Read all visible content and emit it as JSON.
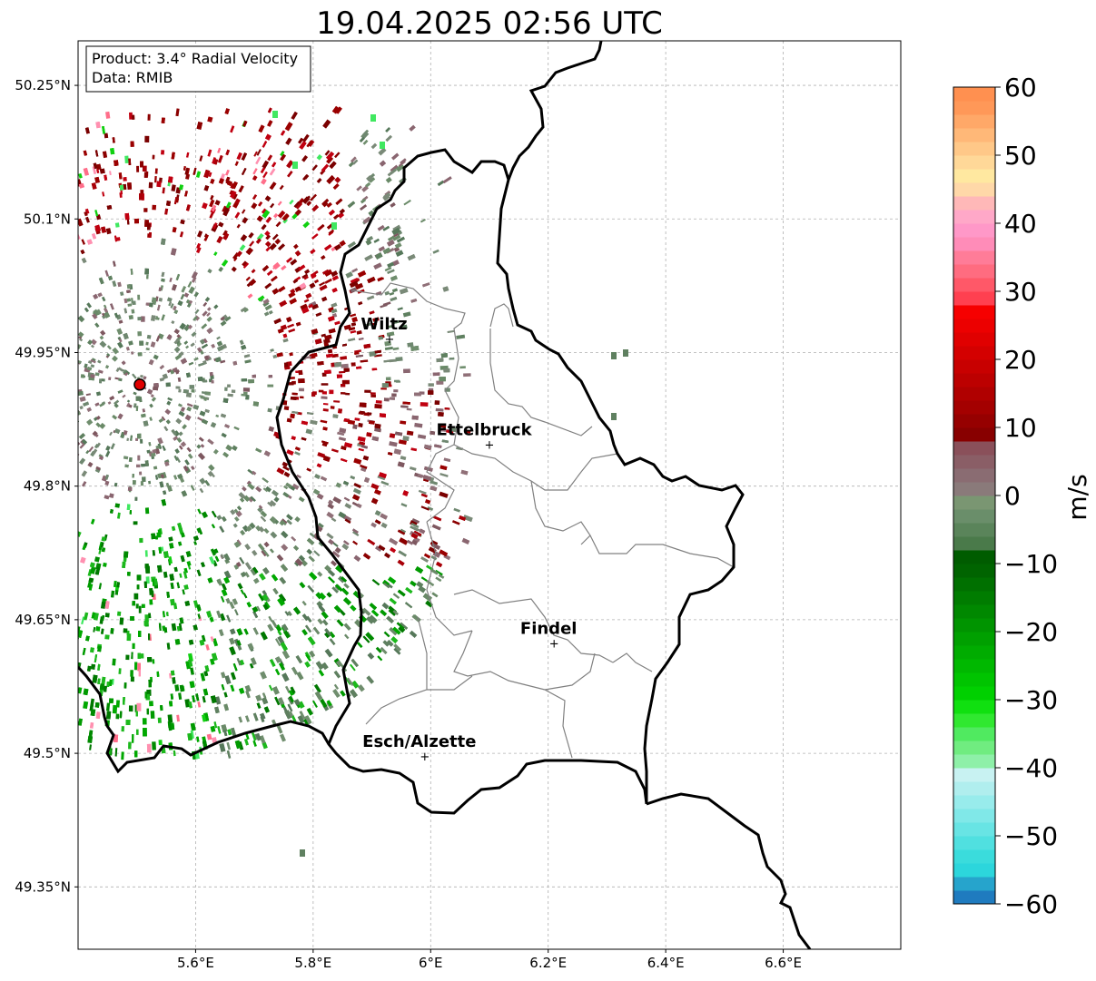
{
  "title": "19.04.2025 02:56 UTC",
  "info_box": {
    "line1": "Product: 3.4° Radial Velocity",
    "line2": "Data: RMIB"
  },
  "axes": {
    "lon_range": [
      5.4,
      6.8
    ],
    "lat_range": [
      49.28,
      50.3
    ],
    "x_ticks": [
      {
        "value": 5.6,
        "label": "5.6°E"
      },
      {
        "value": 5.8,
        "label": "5.8°E"
      },
      {
        "value": 6.0,
        "label": "6°E"
      },
      {
        "value": 6.2,
        "label": "6.2°E"
      },
      {
        "value": 6.4,
        "label": "6.4°E"
      },
      {
        "value": 6.6,
        "label": "6.6°E"
      }
    ],
    "y_ticks": [
      {
        "value": 50.25,
        "label": "50.25°N"
      },
      {
        "value": 50.1,
        "label": "50.1°N"
      },
      {
        "value": 49.95,
        "label": "49.95°N"
      },
      {
        "value": 49.8,
        "label": "49.8°N"
      },
      {
        "value": 49.65,
        "label": "49.65°N"
      },
      {
        "value": 49.5,
        "label": "49.5°N"
      },
      {
        "value": 49.35,
        "label": "49.35°N"
      }
    ],
    "grid": true
  },
  "radar_site": {
    "lon": 5.505,
    "lat": 49.914,
    "color": "#e00000"
  },
  "cities": [
    {
      "name": "Wiltz",
      "lon": 5.93,
      "lat": 49.966
    },
    {
      "name": "Ettelbruck",
      "lon": 6.1,
      "lat": 49.847
    },
    {
      "name": "Findel",
      "lon": 6.21,
      "lat": 49.624
    },
    {
      "name": "Esch/Alzette",
      "lon": 5.99,
      "lat": 49.497
    }
  ],
  "colorbar": {
    "unit": "m/s",
    "min": -60,
    "max": 60,
    "ticks": [
      {
        "value": 60,
        "label": "60"
      },
      {
        "value": 50,
        "label": "50"
      },
      {
        "value": 40,
        "label": "40"
      },
      {
        "value": 30,
        "label": "30"
      },
      {
        "value": 20,
        "label": "20"
      },
      {
        "value": 10,
        "label": "10"
      },
      {
        "value": 0,
        "label": "0"
      },
      {
        "value": -10,
        "label": "−10"
      },
      {
        "value": -20,
        "label": "−20"
      },
      {
        "value": -30,
        "label": "−30"
      },
      {
        "value": -40,
        "label": "−40"
      },
      {
        "value": -50,
        "label": "−50"
      },
      {
        "value": -60,
        "label": "−60"
      }
    ],
    "colors": [
      "#1f7bbf",
      "#26a4cc",
      "#2cd6dc",
      "#3adcdc",
      "#50e0e0",
      "#68e4e4",
      "#80e8e8",
      "#98ecec",
      "#b0eeee",
      "#c8f2f2",
      "#8ef0a8",
      "#70ec80",
      "#50ea60",
      "#30e830",
      "#10e010",
      "#00d000",
      "#00c400",
      "#00b800",
      "#00ac00",
      "#00a000",
      "#009400",
      "#008800",
      "#007c00",
      "#007000",
      "#006400",
      "#005c00",
      "#4a7a4a",
      "#5a845a",
      "#6a8e6a",
      "#7a9672",
      "#8a7a7a",
      "#8a6c72",
      "#8a5e66",
      "#8a505a",
      "#880000",
      "#960000",
      "#a40000",
      "#b00000",
      "#bc0000",
      "#c80000",
      "#d40000",
      "#e00000",
      "#ec0000",
      "#f60000",
      "#ff4050",
      "#ff5868",
      "#ff6c80",
      "#ff7c98",
      "#ff8cb8",
      "#ff98c8",
      "#ffa8c8",
      "#ffb8b8",
      "#ffd8a8",
      "#ffe8a0",
      "#ffd898",
      "#ffc888",
      "#ffb878",
      "#ffa868",
      "#ff9858",
      "#ff9050"
    ]
  },
  "echo_colors": {
    "outbound": [
      "#8b0000",
      "#9a0000",
      "#7a0000",
      "#a80008",
      "#c00010"
    ],
    "near_zero": [
      "#8a6670",
      "#7e5860",
      "#907078",
      "#6f8870",
      "#7a8a78"
    ],
    "inbound": [
      "#008a00",
      "#009a00",
      "#007800",
      "#00a800",
      "#1cb81c"
    ],
    "muted_green": [
      "#5f8060",
      "#6a8a68",
      "#56785a",
      "#708e6e"
    ],
    "accent": [
      "#ff6e8a",
      "#10d010",
      "#40e860",
      "#ff90b0"
    ]
  }
}
